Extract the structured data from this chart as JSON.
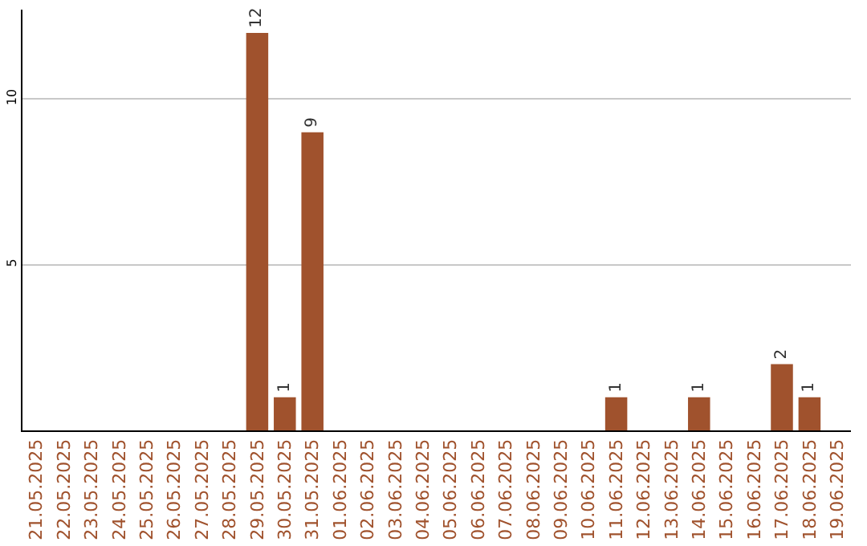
{
  "chart_data": {
    "type": "bar",
    "categories": [
      "21.05.2025",
      "22.05.2025",
      "23.05.2025",
      "24.05.2025",
      "25.05.2025",
      "26.05.2025",
      "27.05.2025",
      "28.05.2025",
      "29.05.2025",
      "30.05.2025",
      "31.05.2025",
      "01.06.2025",
      "02.06.2025",
      "03.06.2025",
      "04.06.2025",
      "05.06.2025",
      "06.06.2025",
      "07.06.2025",
      "08.06.2025",
      "09.06.2025",
      "10.06.2025",
      "11.06.2025",
      "12.06.2025",
      "13.06.2025",
      "14.06.2025",
      "15.06.2025",
      "16.06.2025",
      "17.06.2025",
      "18.06.2025",
      "19.06.2025"
    ],
    "values": [
      0,
      0,
      0,
      0,
      0,
      0,
      0,
      0,
      12,
      1,
      9,
      0,
      0,
      0,
      0,
      0,
      0,
      0,
      0,
      0,
      0,
      1,
      0,
      0,
      1,
      0,
      0,
      2,
      1,
      0
    ],
    "value_labels": [
      null,
      null,
      null,
      null,
      null,
      null,
      null,
      null,
      "12",
      "1",
      "9",
      null,
      null,
      null,
      null,
      null,
      null,
      null,
      null,
      null,
      null,
      "1",
      null,
      null,
      "1",
      null,
      null,
      "2",
      "1",
      null
    ],
    "color": "#a0522d",
    "ylim": [
      0,
      12.7
    ],
    "yticks": [
      5,
      10
    ],
    "grid": "y"
  }
}
